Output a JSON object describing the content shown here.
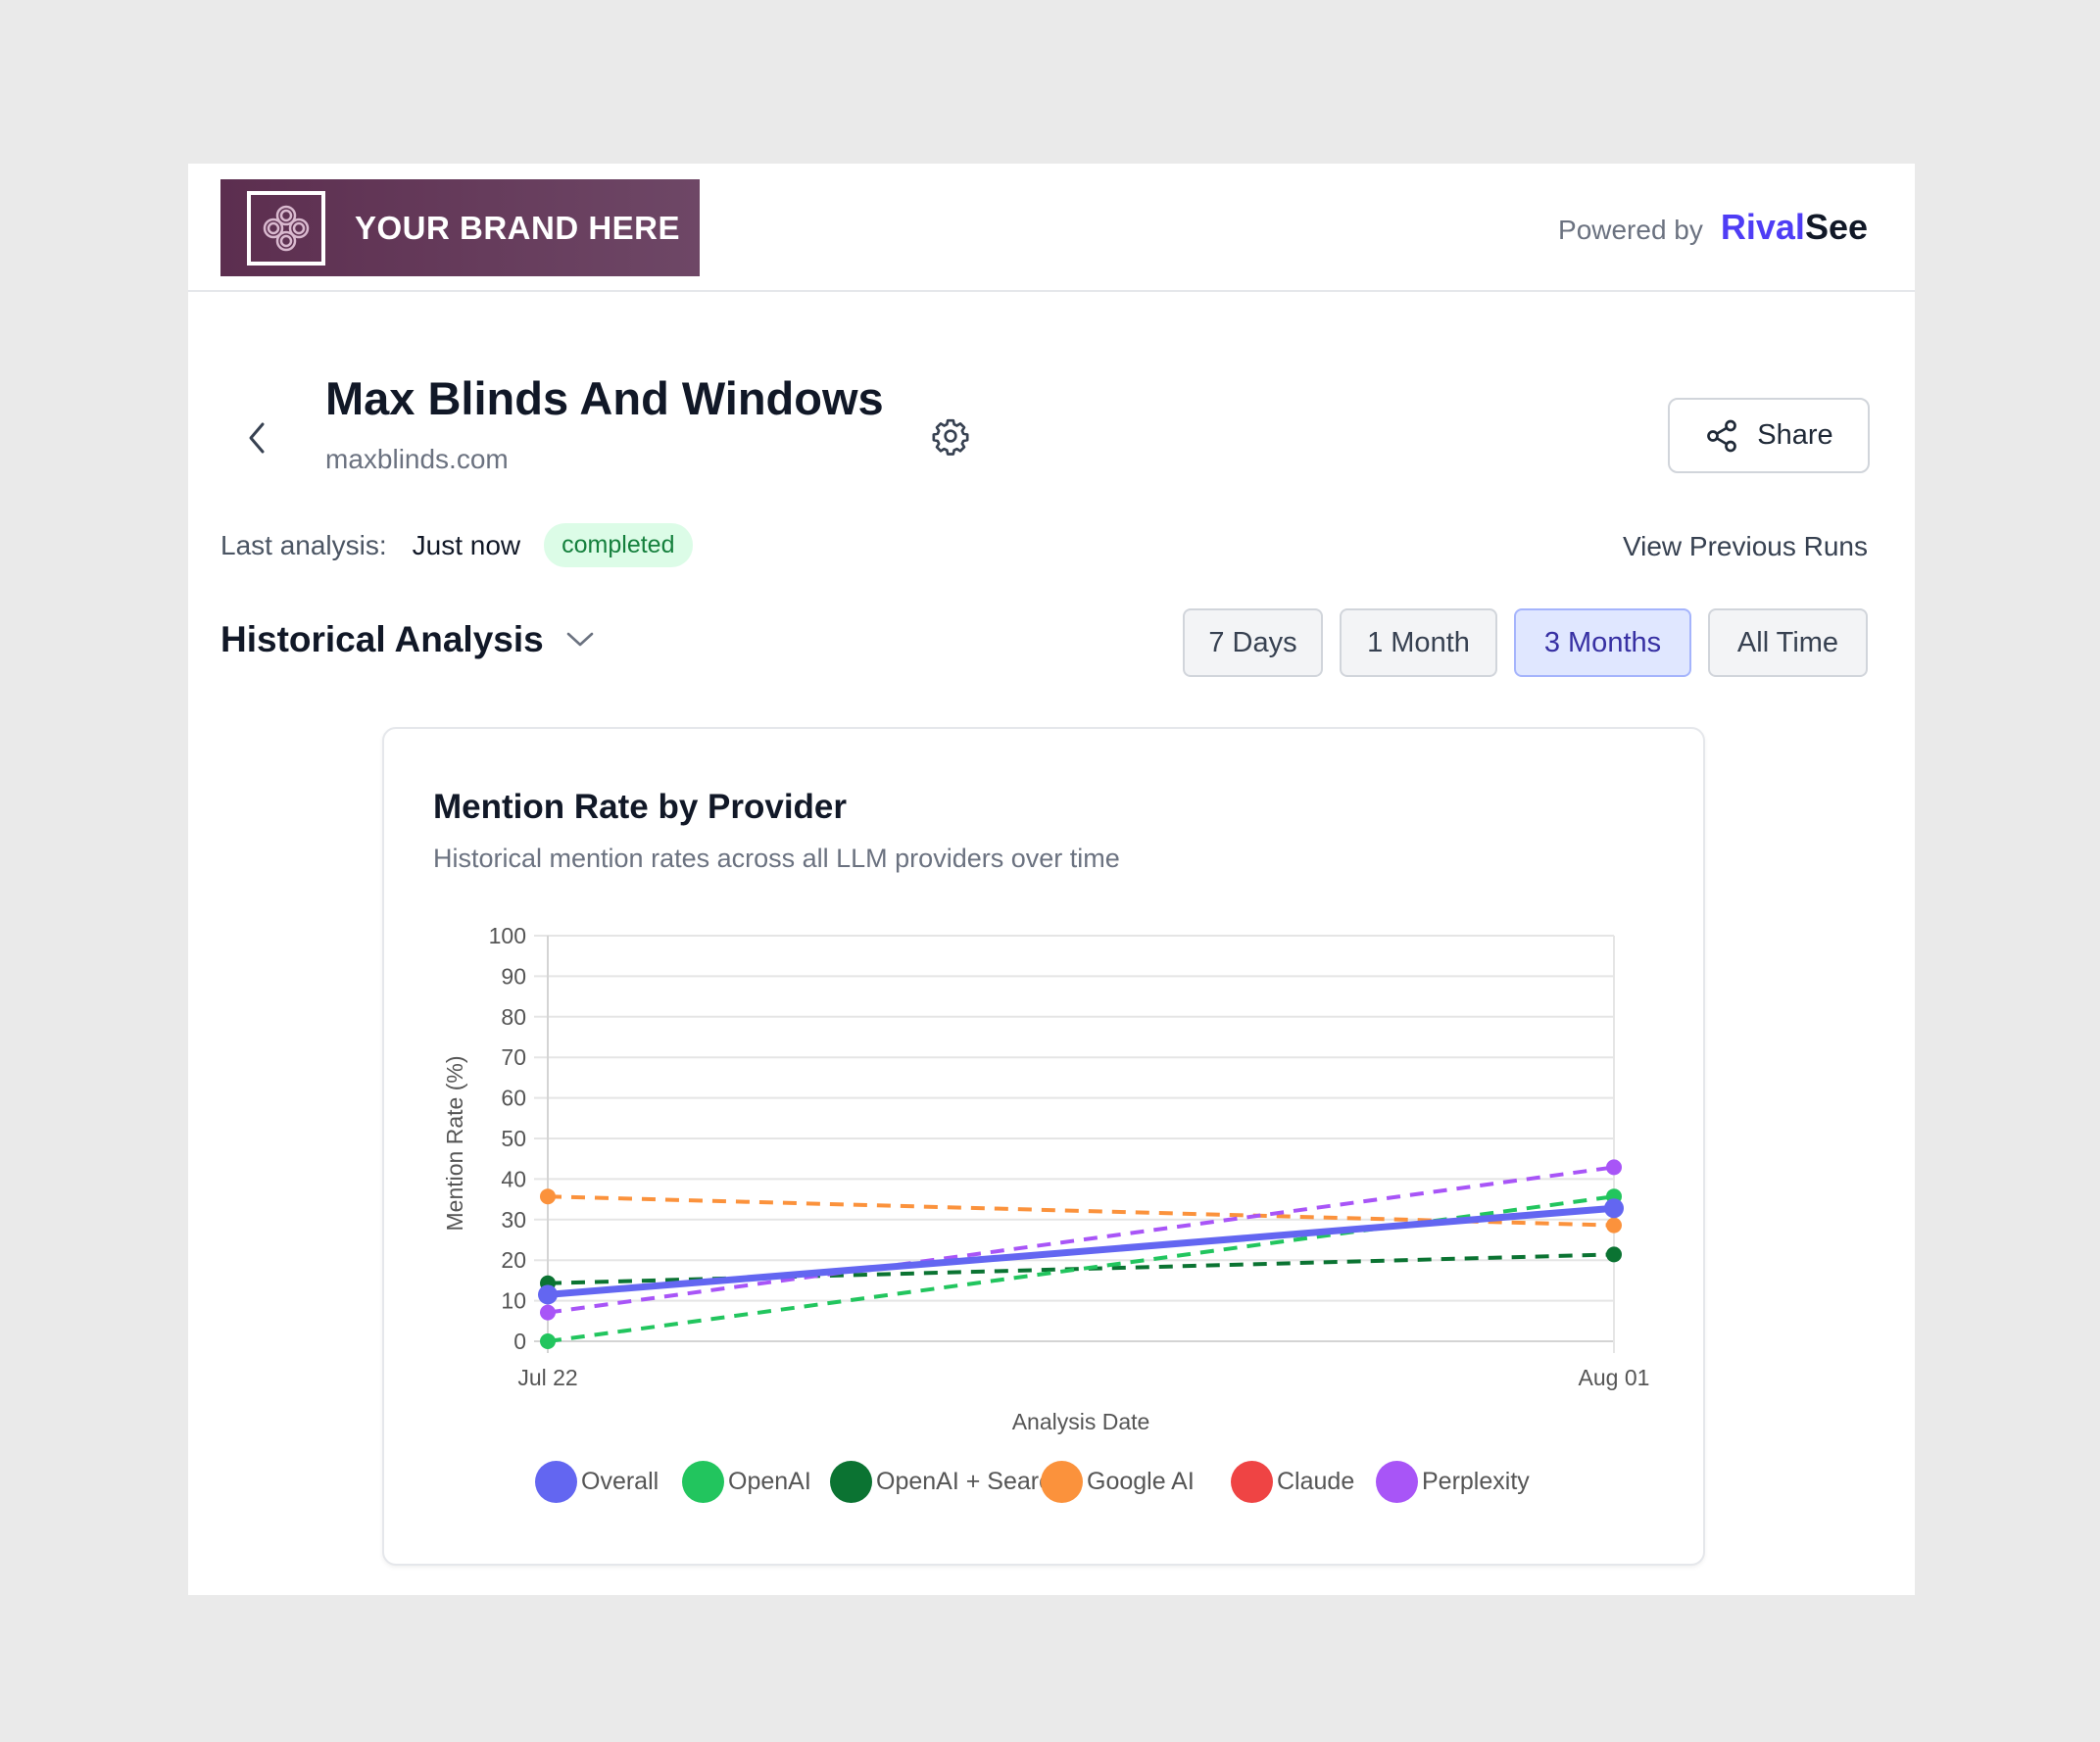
{
  "header": {
    "brand_text": "YOUR BRAND HERE",
    "powered_by_label": "Powered by",
    "powered_by_brand_part1": "Rival",
    "powered_by_brand_part2": "See",
    "brand_color": "#4f3df5"
  },
  "company": {
    "name": "Max Blinds And Windows",
    "domain": "maxblinds.com"
  },
  "actions": {
    "share_label": "Share",
    "view_previous_runs": "View Previous Runs"
  },
  "status": {
    "last_analysis_label": "Last analysis:",
    "last_analysis_value": "Just now",
    "badge": "completed"
  },
  "section": {
    "title": "Historical Analysis"
  },
  "time_ranges": [
    {
      "label": "7 Days",
      "active": false
    },
    {
      "label": "1 Month",
      "active": false
    },
    {
      "label": "3 Months",
      "active": true
    },
    {
      "label": "All Time",
      "active": false
    }
  ],
  "chart_card": {
    "title": "Mention Rate by Provider",
    "subtitle": "Historical mention rates across all LLM providers over time"
  },
  "chart_data": {
    "type": "line",
    "title": "Mention Rate by Provider",
    "subtitle": "Historical mention rates across all LLM providers over time",
    "xlabel": "Analysis Date",
    "ylabel": "Mention Rate (%)",
    "x": [
      "Jul 22",
      "Aug 01"
    ],
    "ylim": [
      0,
      100
    ],
    "yticks": [
      0,
      10,
      20,
      30,
      40,
      50,
      60,
      70,
      80,
      90,
      100
    ],
    "grid": true,
    "legend_position": "bottom",
    "series": [
      {
        "name": "Overall",
        "color": "#6366f1",
        "style": "solid",
        "values": [
          11.5,
          32.8
        ]
      },
      {
        "name": "OpenAI",
        "color": "#22c55e",
        "style": "dashed",
        "values": [
          0,
          35.7
        ]
      },
      {
        "name": "OpenAI + Search",
        "color": "#0b7332",
        "style": "dashed",
        "values": [
          14.3,
          21.4
        ]
      },
      {
        "name": "Google AI",
        "color": "#fb923c",
        "style": "dashed",
        "values": [
          35.7,
          28.6
        ]
      },
      {
        "name": "Claude",
        "color": "#ef4444",
        "style": "dashed",
        "values": [
          null,
          null
        ]
      },
      {
        "name": "Perplexity",
        "color": "#a855f7",
        "style": "dashed",
        "values": [
          7.1,
          42.9
        ]
      }
    ]
  }
}
